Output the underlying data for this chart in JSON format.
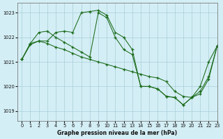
{
  "title": "Graphe pression niveau de la mer (hPa)",
  "bg_color": "#d4eef5",
  "grid_color": "#a8cdd8",
  "line_color": "#1a6b1a",
  "xlim": [
    -0.5,
    23
  ],
  "ylim": [
    1018.6,
    1023.4
  ],
  "yticks": [
    1019,
    1020,
    1021,
    1022,
    1023
  ],
  "xticks": [
    0,
    1,
    2,
    3,
    4,
    5,
    6,
    7,
    8,
    9,
    10,
    11,
    12,
    13,
    14,
    15,
    16,
    17,
    18,
    19,
    20,
    21,
    22,
    23
  ],
  "series": [
    {
      "x": [
        0,
        1,
        2,
        3,
        4,
        5,
        6,
        7,
        8,
        9,
        10,
        11,
        12,
        13,
        14,
        15,
        16,
        17,
        18,
        19,
        20,
        21,
        22,
        23
      ],
      "y": [
        1021.1,
        1021.7,
        1021.85,
        1021.85,
        1022.2,
        1022.25,
        1022.2,
        1023.0,
        1023.05,
        1023.1,
        1022.9,
        1022.2,
        1022.0,
        1021.5,
        1020.0,
        1020.0,
        1019.9,
        1019.6,
        1019.55,
        1019.25,
        1019.55,
        1020.0,
        1021.0,
        1021.65
      ]
    },
    {
      "x": [
        0,
        1,
        2,
        3,
        4,
        5,
        6,
        7,
        8,
        9,
        10,
        11,
        12,
        13,
        14,
        15,
        16,
        17,
        18,
        19,
        20,
        21,
        22,
        23
      ],
      "y": [
        1021.1,
        1021.75,
        1022.2,
        1022.25,
        1022.0,
        1021.8,
        1021.6,
        1021.4,
        1021.2,
        1023.0,
        1022.8,
        1022.0,
        1021.5,
        1021.3,
        1020.0,
        1020.0,
        1019.9,
        1019.6,
        1019.55,
        1019.25,
        1019.55,
        1019.8,
        1020.4,
        1021.65
      ]
    },
    {
      "x": [
        0,
        1,
        2,
        3,
        4,
        5,
        6,
        7,
        8,
        9,
        10,
        11,
        12,
        13,
        14,
        15,
        16,
        17,
        18,
        19,
        20,
        21,
        22,
        23
      ],
      "y": [
        1021.1,
        1021.75,
        1021.85,
        1021.75,
        1021.6,
        1021.5,
        1021.35,
        1021.2,
        1021.1,
        1021.0,
        1020.9,
        1020.8,
        1020.7,
        1020.6,
        1020.5,
        1020.4,
        1020.35,
        1020.2,
        1019.8,
        1019.6,
        1019.55,
        1019.7,
        1020.3,
        1021.65
      ]
    }
  ]
}
